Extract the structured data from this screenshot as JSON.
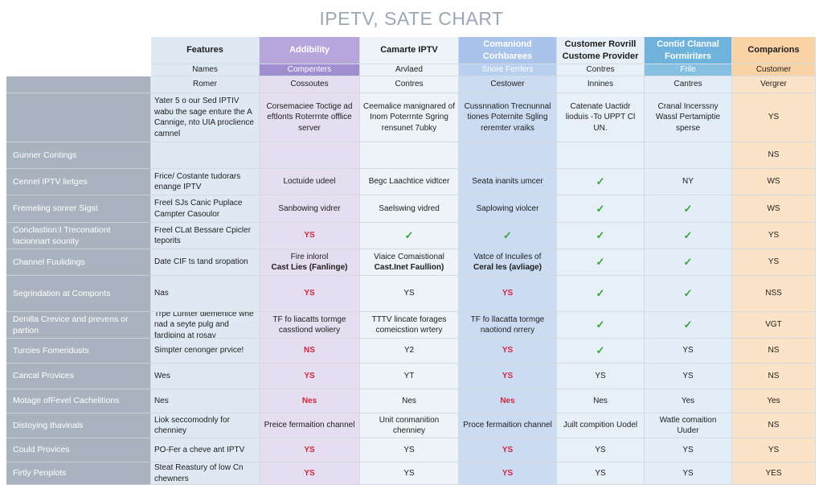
{
  "title": "IPETV, SATE CHART",
  "headers": [
    "Features",
    "Addibility",
    "Camarte IPTV",
    "Comaniond Corhbarees",
    "Customer Rovrill Custome Provider",
    "Contid Clannal Formiriters",
    "Comparions"
  ],
  "subheaders": [
    "Names",
    "Compenters",
    "Arvlaed",
    "Snore Ferrlers",
    "Contres",
    "Frile",
    "Customer"
  ],
  "row0": [
    "Romer",
    "Cossoutes",
    "Contres",
    "Cestower",
    "Innines",
    "Cantres",
    "Vergrer"
  ],
  "rows": [
    {
      "label": "",
      "cells": [
        "Yater 5 o our Sed IPTIV wabu the sage enture the A Cannige, nto UIA proclience camnel",
        "Corsemaciee Toctige ad eftlonts Roterrnte offlice server",
        "Ceemalice manignared of Inom Poterrnte Sgring rensunet 7ubky",
        "Cussnnation Trecnunnal tiones Poternite Sgling reremter vraiks",
        "Catenate Uactidr lioduis -To UPPT Cl UN.",
        "Cranal Incerssny Wassl Pertamiptie sperse",
        "YS"
      ]
    },
    {
      "label": "Gunner Contings",
      "cells": [
        "",
        "",
        "",
        "",
        "",
        "",
        "NS"
      ]
    },
    {
      "label": "Cennel IPTV lietges",
      "cells": [
        "Frice/ Costante tudorars enange IPTV",
        "Loctuide udeel",
        "Begc Laachtice vidtcer",
        "Seata inanits umcer",
        "✓",
        "NY",
        "WS"
      ]
    },
    {
      "label": "Fremeling sonrer Sigst",
      "cells": [
        "Freel SJs Canic Puplace Campter Casoulor",
        "Sanbowing vidrer",
        "Saelswing vidred",
        "Saplowing violcer",
        "✓",
        "✓",
        "WS"
      ]
    },
    {
      "label": "Conclastion:I Treconationt tacionnart sounity",
      "cells": [
        "Freel CLat Bessare Cpicler teporits",
        "YS",
        "✓",
        "✓",
        "✓",
        "✓",
        "YS"
      ]
    },
    {
      "label": "Channel Fuulidings",
      "cells": [
        "Date CIF ts tand sropation",
        "Fire inlorol|Cast Lies (Fanlinge)",
        "Viaice Comaistional|Cast.Inet Faullion)",
        "Vatce of Incuiles of|Ceral Ies (avliage)",
        "✓",
        "✓",
        "YS"
      ]
    },
    {
      "label": "Segrindation at Componts",
      "cells": [
        "Nas",
        "YS",
        "YS",
        "YS",
        "✓",
        "✓",
        "NSS"
      ]
    },
    {
      "label": "Denilla Crevice and prevens or partion",
      "cells": [
        "Trpe Lunfter dlemenice whe nad a seyte pulg and fardiping at rosay",
        "TF fo liacatts tormge casstiond woliery",
        "TTTV lincate forages comeicstion wrtery",
        "TF fo llacatta tormge naotiond nrrery",
        "✓",
        "✓",
        "VGT"
      ]
    },
    {
      "label": "Turcies Fomeridusts",
      "cells": [
        "Simpter cenonger prvice!",
        "NS",
        "Y2",
        "YS",
        "✓",
        "YS",
        "NS"
      ]
    },
    {
      "label": "Cancal Provices",
      "cells": [
        "Wes",
        "YS",
        "YT",
        "YS",
        "YS",
        "YS",
        "NS"
      ]
    },
    {
      "label": "Motage ofFevel Cachelitions",
      "cells": [
        "Nes",
        "Nes",
        "Nes",
        "Nes",
        "Nes",
        "Yes",
        "Yes"
      ]
    },
    {
      "label": "Distoying thavinals",
      "cells": [
        "Liok seccomodnly for chenniey",
        "Preice fermaition channel",
        "Unit conmanition chenniey",
        "Proce fermaition channel",
        "Juilt compition Uodel",
        "Watle comaition Uuder",
        "NS"
      ]
    },
    {
      "label": "Could Provices",
      "cells": [
        "PO-Fer a cheve ant IPTV",
        "YS",
        "YS",
        "YS",
        "YS",
        "YS",
        "YS"
      ]
    },
    {
      "label": "Firtly Penplots",
      "cells": [
        "Steat Reastury of low Cn chewners",
        "YS",
        "YS",
        "YS",
        "YS",
        "YS",
        "YES"
      ]
    }
  ],
  "red_columns": [
    1,
    3
  ],
  "colors": {
    "feature_column": "#a9b3bf",
    "check": "#3aa33a",
    "red_text": "#d3253b",
    "accent_purple": "#b6a6db",
    "accent_blue": "#6fb2dc",
    "accent_orange": "#f9d2a6"
  }
}
